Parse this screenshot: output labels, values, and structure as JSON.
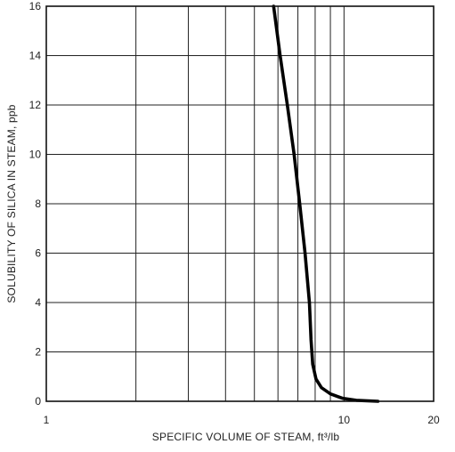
{
  "chart_data": {
    "type": "line",
    "xlabel": "SPECIFIC VOLUME OF STEAM, ft³/lb",
    "ylabel": "SOLUBILITY OF SILICA IN STEAM, ppb",
    "x_scale": "log",
    "xlim": [
      1,
      20
    ],
    "ylim": [
      0,
      16
    ],
    "grid": true,
    "x_ticks": [
      1,
      10,
      20
    ],
    "x_tick_labels": [
      "1",
      "10",
      "20"
    ],
    "x_minor_grid": [
      2,
      3,
      4,
      5,
      6,
      7,
      8,
      9
    ],
    "y_ticks": [
      0,
      2,
      4,
      6,
      8,
      10,
      12,
      14,
      16
    ],
    "y_tick_labels": [
      "0",
      "2",
      "4",
      "6",
      "8",
      "10",
      "12",
      "14",
      "16"
    ],
    "series": [
      {
        "x": [
          5.8,
          6.1,
          6.45,
          6.8,
          7.1,
          7.4,
          7.65,
          7.75,
          7.85,
          8.05,
          8.4,
          9.0,
          9.9,
          11.0,
          13.0
        ],
        "y": [
          16,
          14,
          12,
          10,
          8,
          6,
          4,
          2.5,
          1.5,
          0.9,
          0.55,
          0.3,
          0.12,
          0.04,
          0.0
        ]
      }
    ]
  }
}
